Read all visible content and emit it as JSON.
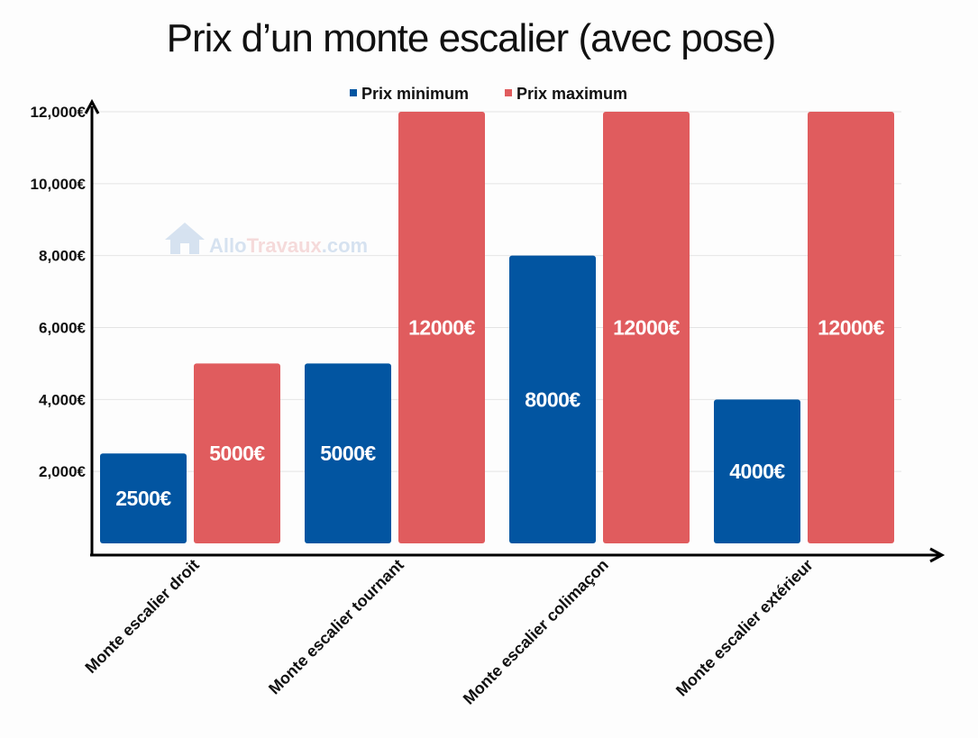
{
  "chart_data": {
    "type": "bar",
    "title": "Prix d’un monte escalier (avec pose)",
    "categories": [
      "Monte escalier droit",
      "Monte escalier tournant",
      "Monte escalier colimaçon",
      "Monte escalier extérieur"
    ],
    "series": [
      {
        "name": "Prix minimum",
        "color": "#0255a1",
        "values": [
          2500,
          5000,
          8000,
          4000
        ],
        "labels": [
          "2500€",
          "5000€",
          "8000€",
          "4000€"
        ]
      },
      {
        "name": "Prix maximum",
        "color": "#e05c5e",
        "values": [
          5000,
          12000,
          12000,
          12000
        ],
        "labels": [
          "5000€",
          "12000€",
          "12000€",
          "12000€"
        ]
      }
    ],
    "yticks": [
      2000,
      4000,
      6000,
      8000,
      10000,
      12000
    ],
    "ytick_labels": [
      "2,000€",
      "4,000€",
      "6,000€",
      "8,000€",
      "10,000€",
      "12,000€"
    ],
    "ylim": [
      0,
      12000
    ],
    "grid": true,
    "legend_position": "top-center"
  },
  "watermark": {
    "part1": "Allo",
    "part2": "Travaux",
    "part3": ".com"
  }
}
